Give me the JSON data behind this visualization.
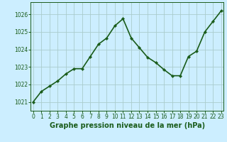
{
  "x": [
    0,
    1,
    2,
    3,
    4,
    5,
    6,
    7,
    8,
    9,
    10,
    11,
    12,
    13,
    14,
    15,
    16,
    17,
    18,
    19,
    20,
    21,
    22,
    23
  ],
  "y": [
    1021.0,
    1021.6,
    1021.9,
    1022.2,
    1022.6,
    1022.9,
    1022.9,
    1023.6,
    1024.3,
    1024.65,
    1025.35,
    1025.75,
    1024.65,
    1024.1,
    1023.55,
    1023.25,
    1022.85,
    1022.5,
    1022.5,
    1023.6,
    1023.9,
    1025.0,
    1025.6,
    1026.2
  ],
  "line_color": "#1a5c1a",
  "marker": "D",
  "marker_size": 2.2,
  "bg_color": "#cceeff",
  "grid_color": "#aacccc",
  "xlabel": "Graphe pression niveau de la mer (hPa)",
  "xlabel_fontsize": 7.0,
  "ylabel_ticks": [
    1021,
    1022,
    1023,
    1024,
    1025,
    1026
  ],
  "ylim": [
    1020.5,
    1026.7
  ],
  "xlim": [
    -0.3,
    23.3
  ],
  "xtick_labels": [
    "0",
    "1",
    "2",
    "3",
    "4",
    "5",
    "6",
    "7",
    "8",
    "9",
    "10",
    "11",
    "12",
    "13",
    "14",
    "15",
    "16",
    "17",
    "18",
    "19",
    "20",
    "21",
    "22",
    "23"
  ],
  "tick_fontsize": 5.5,
  "line_width": 1.2
}
